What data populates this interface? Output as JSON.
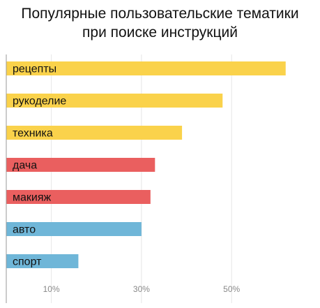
{
  "chart_data": {
    "type": "bar",
    "orientation": "horizontal",
    "title_lines": [
      "Популярные пользовательские тематики",
      "при поиске инструкций"
    ],
    "categories": [
      "рецепты",
      "рукоделие",
      "техника",
      "дача",
      "макияж",
      "авто",
      "спорт"
    ],
    "values": [
      62,
      48,
      39,
      33,
      32,
      30,
      16
    ],
    "colors": [
      "#fad24b",
      "#fad24b",
      "#fad24b",
      "#ea5f5f",
      "#ea5f5f",
      "#6fb6d8",
      "#6fb6d8"
    ],
    "x_ticks": [
      {
        "value": 10,
        "label": "10%"
      },
      {
        "value": 30,
        "label": "30%"
      },
      {
        "value": 50,
        "label": "50%"
      }
    ],
    "xlim": [
      0,
      69
    ],
    "grid": true,
    "xlabel": "",
    "ylabel": ""
  }
}
